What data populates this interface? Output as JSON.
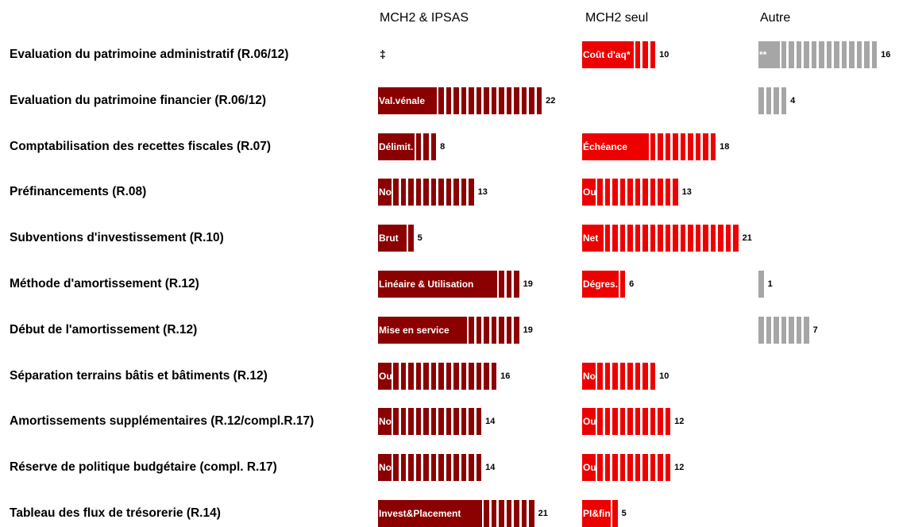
{
  "colors": {
    "mch2_ipsas": "#8b0000",
    "mch2_seul": "#ee0000",
    "autre": "#a6a6a6"
  },
  "chart_data": {
    "type": "bar",
    "columns": [
      "MCH2 & IPSAS",
      "MCH2 seul",
      "Autre"
    ],
    "rows": [
      {
        "label": "Evaluation du patrimoine administratif (R.06/12)",
        "mch2_ipsas": null,
        "mch2_ipsas_note": "‡",
        "mch2_seul": {
          "category": "Coût d'aq*",
          "value": 10
        },
        "autre": {
          "category": "**",
          "value": 16
        }
      },
      {
        "label": "Evaluation du patrimoine financier (R.06/12)",
        "mch2_ipsas": {
          "category": "Val.vénale",
          "value": 22
        },
        "mch2_seul": null,
        "autre": {
          "category": "",
          "value": 4
        }
      },
      {
        "label": "Comptabilisation des recettes fiscales (R.07)",
        "mch2_ipsas": {
          "category": "Délimit.",
          "value": 8
        },
        "mch2_seul": {
          "category": "Échéance",
          "value": 18
        },
        "autre": null
      },
      {
        "label": "Préfinancements (R.08)",
        "mch2_ipsas": {
          "category": "Non",
          "value": 13
        },
        "mch2_seul": {
          "category": "Oui",
          "value": 13
        },
        "autre": null
      },
      {
        "label": "Subventions d'investissement (R.10)",
        "mch2_ipsas": {
          "category": "Brut",
          "value": 5
        },
        "mch2_seul": {
          "category": "Net",
          "value": 21
        },
        "autre": null
      },
      {
        "label": "Méthode d'amortissement (R.12)",
        "mch2_ipsas": {
          "category": "Linéaire & Utilisation",
          "value": 19
        },
        "mch2_seul": {
          "category": "Dégres.",
          "value": 6
        },
        "autre": {
          "category": "",
          "value": 1
        }
      },
      {
        "label": "Début de l'amortissement (R.12)",
        "mch2_ipsas": {
          "category": "Mise en service",
          "value": 19
        },
        "mch2_seul": null,
        "autre": {
          "category": "",
          "value": 7
        }
      },
      {
        "label": "Séparation terrains bâtis et bâtiments (R.12)",
        "mch2_ipsas": {
          "category": "Oui",
          "value": 16
        },
        "mch2_seul": {
          "category": "Non",
          "value": 10
        },
        "autre": null
      },
      {
        "label": "Amortissements supplémentaires (R.12/compl.R.17)",
        "mch2_ipsas": {
          "category": "Non",
          "value": 14
        },
        "mch2_seul": {
          "category": "Oui",
          "value": 12
        },
        "autre": null
      },
      {
        "label": "Réserve de politique budgétaire (compl. R.17)",
        "mch2_ipsas": {
          "category": "Non",
          "value": 14
        },
        "mch2_seul": {
          "category": "Oui",
          "value": 12
        },
        "autre": null
      },
      {
        "label": "Tableau des flux de trésorerie (R.14)",
        "mch2_ipsas": {
          "category": "Invest&Placement",
          "value": 21
        },
        "mch2_seul": {
          "category": "PI&fin",
          "value": 5
        },
        "autre": null
      }
    ]
  }
}
